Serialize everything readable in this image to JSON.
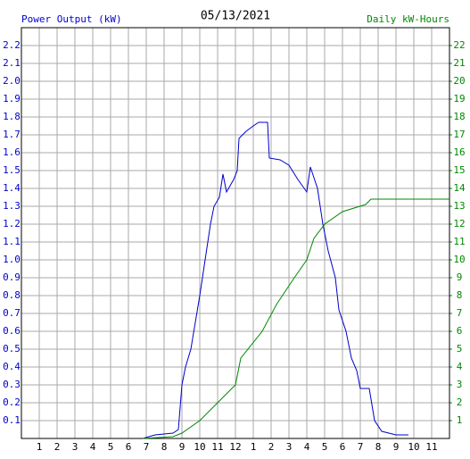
{
  "chart_data": {
    "type": "line",
    "title": "05/13/2021",
    "y_label": "Power Output (kW)",
    "y2_label": "Daily kW-Hours",
    "xlim": [
      0,
      24
    ],
    "xticks": [
      1,
      2,
      3,
      4,
      5,
      6,
      7,
      8,
      9,
      10,
      11,
      12,
      {
        "value": 13,
        "label": "1"
      },
      {
        "value": 14,
        "label": "2"
      },
      {
        "value": 15,
        "label": "3"
      },
      {
        "value": 16,
        "label": "4"
      },
      {
        "value": 17,
        "label": "5"
      },
      {
        "value": 18,
        "label": "6"
      },
      {
        "value": 19,
        "label": "7"
      },
      {
        "value": 20,
        "label": "8"
      },
      {
        "value": 21,
        "label": "9"
      },
      {
        "value": 22,
        "label": "10"
      },
      {
        "value": 23,
        "label": "11"
      }
    ],
    "ylim": [
      0,
      2.3
    ],
    "yticks": [
      0.1,
      0.2,
      0.3,
      0.4,
      0.5,
      0.6,
      0.7,
      0.8,
      0.9,
      {
        "value": 1,
        "label": "1.0"
      },
      1.1,
      1.2,
      1.3,
      1.4,
      1.5,
      1.6,
      1.7,
      1.8,
      1.9,
      {
        "value": 2,
        "label": "2.0"
      },
      2.1,
      2.2
    ],
    "y2lim": [
      0,
      23
    ],
    "y2ticks": [
      1,
      2,
      3,
      4,
      5,
      6,
      7,
      8,
      9,
      10,
      11,
      12,
      13,
      14,
      15,
      16,
      17,
      18,
      19,
      20,
      21,
      22
    ],
    "grid": true,
    "series": [
      {
        "name": "Power Output (kW)",
        "color": "#0000cc",
        "x": [
          6.8,
          7.5,
          8.5,
          8.8,
          9,
          9.2,
          9.5,
          10,
          10.3,
          10.6,
          10.8,
          11.1,
          11.3,
          11.5,
          11.9,
          12.1,
          12.2,
          12.6,
          13,
          13.3,
          13.8,
          13.9,
          14.5,
          15,
          15.5,
          16,
          16.2,
          16.6,
          16.9,
          17.2,
          17.6,
          17.8,
          18.2,
          18.5,
          18.8,
          19,
          19.5,
          19.8,
          20.2,
          21,
          21.7
        ],
        "values": [
          0,
          0.02,
          0.03,
          0.05,
          0.3,
          0.4,
          0.5,
          0.8,
          1.0,
          1.2,
          1.3,
          1.35,
          1.48,
          1.38,
          1.45,
          1.5,
          1.68,
          1.72,
          1.75,
          1.77,
          1.77,
          1.57,
          1.56,
          1.53,
          1.45,
          1.38,
          1.52,
          1.4,
          1.2,
          1.05,
          0.9,
          0.72,
          0.6,
          0.45,
          0.38,
          0.28,
          0.28,
          0.1,
          0.04,
          0.02,
          0.02
        ]
      },
      {
        "name": "Daily kW-Hours",
        "color": "#008800",
        "axis": "y2",
        "x": [
          6.8,
          8.5,
          9,
          10,
          11,
          12,
          12.3,
          13.5,
          14.3,
          15.3,
          16,
          16.4,
          17,
          18,
          19.3,
          19.6,
          24
        ],
        "values": [
          0,
          0.1,
          0.3,
          1,
          2,
          3,
          4.5,
          6,
          7.5,
          9,
          10,
          11.2,
          12,
          12.7,
          13.1,
          13.4,
          13.4
        ]
      }
    ]
  }
}
